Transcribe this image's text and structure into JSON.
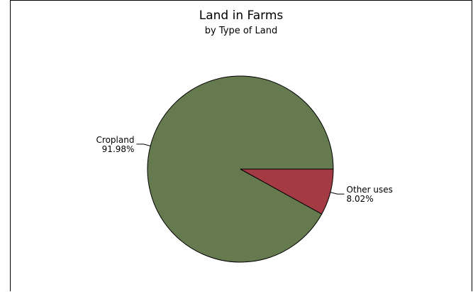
{
  "chart_data": {
    "type": "pie",
    "title": "Land in Farms",
    "subtitle": "by Type of Land",
    "slices": [
      {
        "label": "Cropland",
        "value": 91.98,
        "value_label": "91.98%",
        "color": "#657a4e"
      },
      {
        "label": "Other uses",
        "value": 8.02,
        "value_label": "8.02%",
        "color": "#a33a44"
      }
    ],
    "legend": "none"
  }
}
